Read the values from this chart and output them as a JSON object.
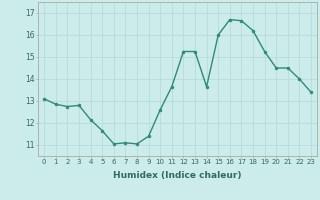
{
  "x": [
    0,
    1,
    2,
    3,
    4,
    5,
    6,
    7,
    8,
    9,
    10,
    11,
    12,
    13,
    14,
    15,
    16,
    17,
    18,
    19,
    20,
    21,
    22,
    23
  ],
  "y": [
    13.1,
    12.85,
    12.75,
    12.8,
    12.15,
    11.65,
    11.05,
    11.1,
    11.05,
    11.4,
    12.6,
    13.65,
    15.25,
    15.25,
    13.65,
    16.0,
    16.7,
    16.65,
    16.2,
    15.25,
    14.5,
    14.5,
    14.0,
    13.4
  ],
  "line_color": "#2e8b74",
  "marker": "o",
  "marker_size": 2.0,
  "bg_color": "#ccecea",
  "grid_color": "#b8dbd9",
  "xlabel": "Humidex (Indice chaleur)",
  "ylim": [
    10.5,
    17.5
  ],
  "xlim": [
    -0.5,
    23.5
  ],
  "yticks": [
    11,
    12,
    13,
    14,
    15,
    16,
    17
  ],
  "xtick_labels": [
    "0",
    "1",
    "2",
    "3",
    "4",
    "5",
    "6",
    "7",
    "8",
    "9",
    "10",
    "11",
    "12",
    "13",
    "14",
    "15",
    "16",
    "17",
    "18",
    "19",
    "20",
    "21",
    "22",
    "23"
  ]
}
